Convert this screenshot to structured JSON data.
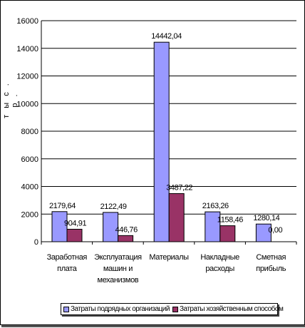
{
  "chart_data": {
    "type": "bar",
    "ylabel": "т ы с . р .",
    "ylim": [
      0,
      16000
    ],
    "yticks": [
      "0",
      "2000",
      "4000",
      "6000",
      "8000",
      "10000",
      "12000",
      "14000",
      "16000"
    ],
    "grid": true,
    "legend_position": "bottom",
    "categories": [
      [
        "Заработная",
        "плата"
      ],
      [
        "Эксплуатация",
        "машин и",
        "механизмов"
      ],
      [
        "Материалы"
      ],
      [
        "Накладные",
        "расходы"
      ],
      [
        "Сметная",
        "прибыль"
      ]
    ],
    "series": [
      {
        "name": "Затраты подрядных организаций",
        "color": "#9999ff",
        "values": [
          2179.64,
          2122.49,
          14442.04,
          2163.26,
          1280.14
        ],
        "labels": [
          "2179,64",
          "2122,49",
          "14442,04",
          "2163,26",
          "1280,14"
        ]
      },
      {
        "name": "Затраты хозяйственным способом",
        "color": "#993366",
        "values": [
          904.91,
          446.76,
          3487.22,
          1158.46,
          0.0
        ],
        "labels": [
          "904,91",
          "446,76",
          "3487,22",
          "1158,46",
          "0,00"
        ]
      }
    ]
  }
}
